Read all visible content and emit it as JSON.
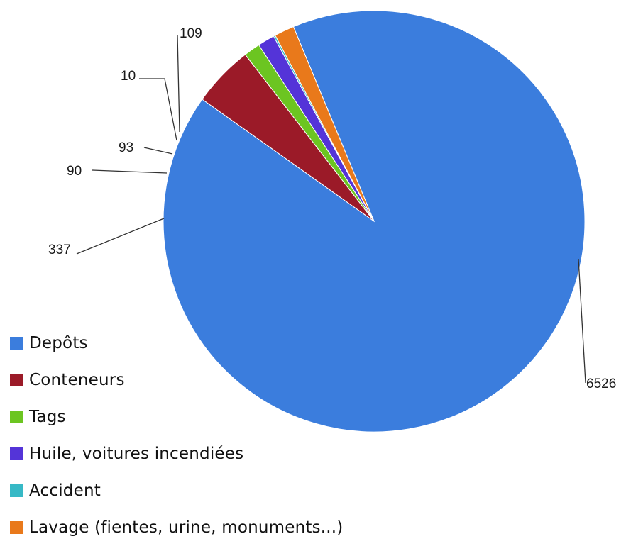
{
  "chart_data": {
    "type": "pie",
    "title": "",
    "categories": [
      "Depôts",
      "Conteneurs",
      "Tags",
      "Huile, voitures incendiées",
      "Accident",
      "Lavage (fientes, urine, monuments...)"
    ],
    "values": [
      6526,
      337,
      90,
      93,
      10,
      109
    ],
    "colors": [
      "#3b7ddd",
      "#9b1a28",
      "#6cc521",
      "#5434d8",
      "#37b9c6",
      "#e9791b"
    ],
    "data_labels": [
      "6526",
      "337",
      "90",
      "93",
      "10",
      "109"
    ],
    "legend_position": "bottom-left",
    "start_angle_deg": 112.5,
    "direction": "counterclockwise-after-first",
    "show_leader_lines": true
  }
}
